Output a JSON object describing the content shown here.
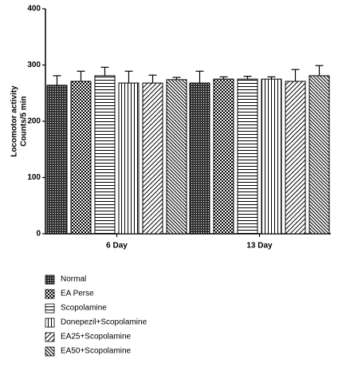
{
  "chart_data": {
    "type": "bar",
    "ylabel": [
      "Locomotor activity",
      "Counts/5 min"
    ],
    "categories": [
      "6 Day",
      "13 Day"
    ],
    "ylim": [
      0,
      400
    ],
    "yticks": [
      0,
      100,
      200,
      300,
      400
    ],
    "series": [
      {
        "name": "Normal",
        "pattern": "crosshatch",
        "values": [
          264,
          268
        ],
        "errors": [
          17,
          21
        ]
      },
      {
        "name": "EA Perse",
        "pattern": "checker",
        "values": [
          271,
          275
        ],
        "errors": [
          18,
          4
        ]
      },
      {
        "name": "Scopolamine",
        "pattern": "horizontal",
        "values": [
          281,
          275
        ],
        "errors": [
          15,
          5
        ]
      },
      {
        "name": "Donepezil+Scopolamine",
        "pattern": "vertical",
        "values": [
          268,
          275
        ],
        "errors": [
          21,
          4
        ]
      },
      {
        "name": "EA25+Scopolamine",
        "pattern": "diagonal-up",
        "values": [
          268,
          271
        ],
        "errors": [
          14,
          21
        ]
      },
      {
        "name": "EA50+Scopolamine",
        "pattern": "diagonal-down",
        "values": [
          274,
          281
        ],
        "errors": [
          4,
          18
        ]
      }
    ]
  }
}
